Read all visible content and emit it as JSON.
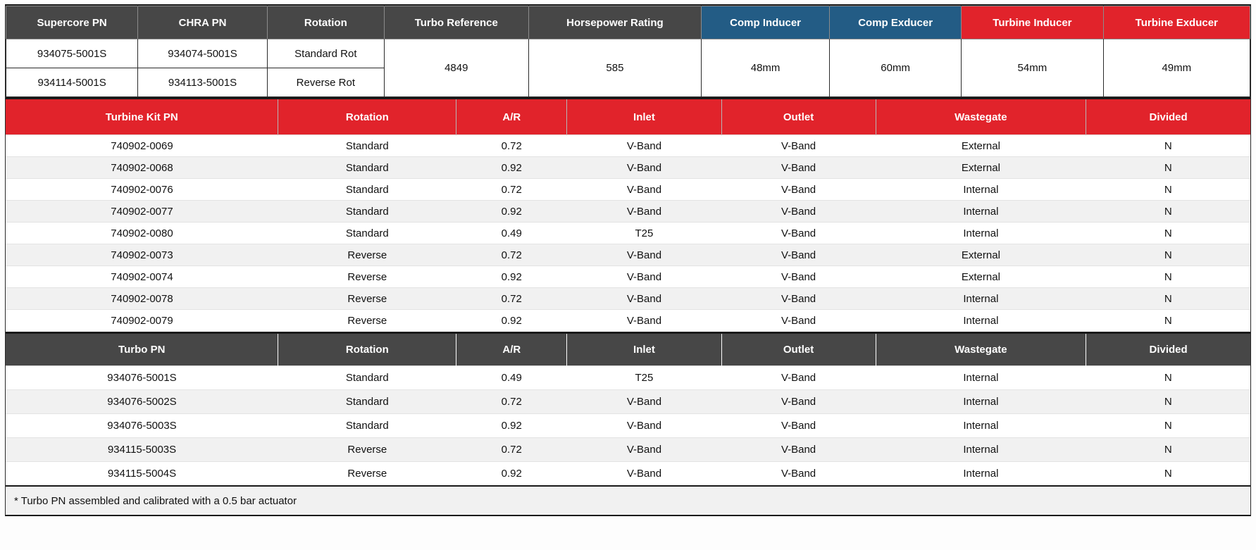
{
  "theme": {
    "header_dark": "#474747",
    "header_blue": "#235C85",
    "header_red": "#E1232B",
    "row_stripe": "#F1F1F1",
    "border_dark": "#1A1A1A"
  },
  "summary_table": {
    "columns": [
      "Supercore PN",
      "CHRA PN",
      "Rotation",
      "Turbo Reference",
      "Horsepower Rating",
      "Comp Inducer",
      "Comp Exducer",
      "Turbine Inducer",
      "Turbine Exducer"
    ],
    "rows": [
      {
        "supercore_pn": "934075-5001S",
        "chra_pn": "934074-5001S",
        "rotation": "Standard Rot"
      },
      {
        "supercore_pn": "934114-5001S",
        "chra_pn": "934113-5001S",
        "rotation": "Reverse Rot"
      }
    ],
    "shared": {
      "turbo_reference": "4849",
      "horsepower_rating": "585",
      "comp_inducer": "48mm",
      "comp_exducer": "60mm",
      "turbine_inducer": "54mm",
      "turbine_exducer": "49mm"
    }
  },
  "kit_table": {
    "columns": [
      "Turbine Kit PN",
      "Rotation",
      "A/R",
      "Inlet",
      "Outlet",
      "Wastegate",
      "Divided"
    ],
    "rows": [
      {
        "pn": "740902-0069",
        "rotation": "Standard",
        "ar": "0.72",
        "inlet": "V-Band",
        "outlet": "V-Band",
        "wastegate": "External",
        "divided": "N"
      },
      {
        "pn": "740902-0068",
        "rotation": "Standard",
        "ar": "0.92",
        "inlet": "V-Band",
        "outlet": "V-Band",
        "wastegate": "External",
        "divided": "N"
      },
      {
        "pn": "740902-0076",
        "rotation": "Standard",
        "ar": "0.72",
        "inlet": "V-Band",
        "outlet": "V-Band",
        "wastegate": "Internal",
        "divided": "N"
      },
      {
        "pn": "740902-0077",
        "rotation": "Standard",
        "ar": "0.92",
        "inlet": "V-Band",
        "outlet": "V-Band",
        "wastegate": "Internal",
        "divided": "N"
      },
      {
        "pn": "740902-0080",
        "rotation": "Standard",
        "ar": "0.49",
        "inlet": "T25",
        "outlet": "V-Band",
        "wastegate": "Internal",
        "divided": "N"
      },
      {
        "pn": "740902-0073",
        "rotation": "Reverse",
        "ar": "0.72",
        "inlet": "V-Band",
        "outlet": "V-Band",
        "wastegate": "External",
        "divided": "N"
      },
      {
        "pn": "740902-0074",
        "rotation": "Reverse",
        "ar": "0.92",
        "inlet": "V-Band",
        "outlet": "V-Band",
        "wastegate": "External",
        "divided": "N"
      },
      {
        "pn": "740902-0078",
        "rotation": "Reverse",
        "ar": "0.72",
        "inlet": "V-Band",
        "outlet": "V-Band",
        "wastegate": "Internal",
        "divided": "N"
      },
      {
        "pn": "740902-0079",
        "rotation": "Reverse",
        "ar": "0.92",
        "inlet": "V-Band",
        "outlet": "V-Band",
        "wastegate": "Internal",
        "divided": "N"
      }
    ]
  },
  "turbo_table": {
    "columns": [
      "Turbo PN",
      "Rotation",
      "A/R",
      "Inlet",
      "Outlet",
      "Wastegate",
      "Divided"
    ],
    "rows": [
      {
        "pn": "934076-5001S",
        "rotation": "Standard",
        "ar": "0.49",
        "inlet": "T25",
        "outlet": "V-Band",
        "wastegate": "Internal",
        "divided": "N"
      },
      {
        "pn": "934076-5002S",
        "rotation": "Standard",
        "ar": "0.72",
        "inlet": "V-Band",
        "outlet": "V-Band",
        "wastegate": "Internal",
        "divided": "N"
      },
      {
        "pn": "934076-5003S",
        "rotation": "Standard",
        "ar": "0.92",
        "inlet": "V-Band",
        "outlet": "V-Band",
        "wastegate": "Internal",
        "divided": "N"
      },
      {
        "pn": "934115-5003S",
        "rotation": "Reverse",
        "ar": "0.72",
        "inlet": "V-Band",
        "outlet": "V-Band",
        "wastegate": "Internal",
        "divided": "N"
      },
      {
        "pn": "934115-5004S",
        "rotation": "Reverse",
        "ar": "0.92",
        "inlet": "V-Band",
        "outlet": "V-Band",
        "wastegate": "Internal",
        "divided": "N"
      }
    ]
  },
  "footnote": "* Turbo PN assembled and calibrated with a 0.5 bar actuator"
}
